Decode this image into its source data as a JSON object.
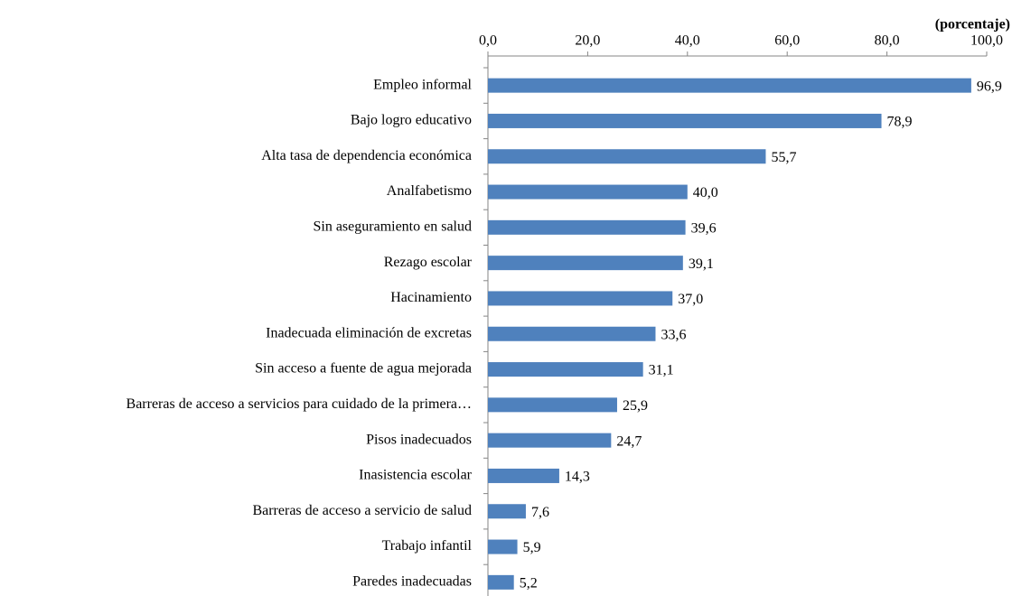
{
  "chart_data": {
    "type": "bar",
    "orientation": "horizontal",
    "x_label": "(porcentaje)",
    "categories": [
      "Empleo informal",
      "Bajo logro educativo",
      "Alta tasa de dependencia económica",
      "Analfabetismo",
      "Sin aseguramiento en salud",
      "Rezago escolar",
      "Hacinamiento",
      "Inadecuada eliminación de excretas",
      "Sin acceso a fuente de agua mejorada",
      "Barreras de acceso a servicios para cuidado de la primera…",
      "Pisos inadecuados",
      "Inasistencia escolar",
      "Barreras de acceso a servicio de salud",
      "Trabajo infantil",
      "Paredes inadecuadas"
    ],
    "values": [
      96.9,
      78.9,
      55.7,
      40.0,
      39.6,
      39.1,
      37.0,
      33.6,
      31.1,
      25.9,
      24.7,
      14.3,
      7.6,
      5.9,
      5.2
    ],
    "value_labels": [
      "96,9",
      "78,9",
      "55,7",
      "40,0",
      "39,6",
      "39,1",
      "37,0",
      "33,6",
      "31,1",
      "25,9",
      "24,7",
      "14,3",
      "7,6",
      "5,9",
      "5,2"
    ],
    "color": "#4f81bd",
    "xlim": [
      0,
      100
    ],
    "xticks": [
      {
        "value": 0,
        "label": "0,0"
      },
      {
        "value": 20,
        "label": "20,0"
      },
      {
        "value": 40,
        "label": "40,0"
      },
      {
        "value": 60,
        "label": "60,0"
      },
      {
        "value": 80,
        "label": "80,0"
      },
      {
        "value": 100,
        "label": "100,0"
      }
    ],
    "grid": false
  }
}
